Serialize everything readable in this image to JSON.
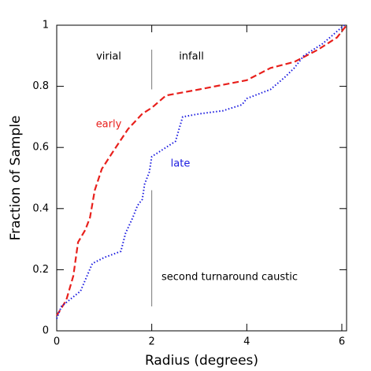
{
  "chart_data": {
    "type": "line",
    "xlabel": "Radius (degrees)",
    "ylabel": "Fraction of Sample",
    "xlim": [
      0,
      6.1
    ],
    "ylim": [
      0,
      1
    ],
    "xticks": [
      0,
      2,
      4,
      6
    ],
    "yticks": [
      0,
      0.2,
      0.4,
      0.6,
      0.8,
      1
    ],
    "series": [
      {
        "name": "early",
        "color": "#e8201c",
        "dash": "dashed",
        "x": [
          0,
          0.2,
          0.35,
          0.45,
          0.6,
          0.7,
          0.8,
          0.95,
          1.2,
          1.5,
          1.8,
          2.0,
          2.3,
          3.0,
          4.0,
          4.5,
          5.0,
          5.5,
          5.9,
          6.1
        ],
        "values": [
          0.05,
          0.1,
          0.18,
          0.29,
          0.33,
          0.37,
          0.46,
          0.53,
          0.59,
          0.66,
          0.71,
          0.73,
          0.77,
          0.79,
          0.82,
          0.86,
          0.88,
          0.92,
          0.96,
          1.0
        ]
      },
      {
        "name": "late",
        "color": "#1c1ce0",
        "dash": "dotted",
        "x": [
          0,
          0.1,
          0.5,
          0.75,
          1.0,
          1.35,
          1.45,
          1.6,
          1.7,
          1.8,
          1.85,
          1.95,
          2.0,
          2.2,
          2.5,
          2.65,
          3.0,
          3.5,
          3.9,
          4.0,
          4.5,
          4.8,
          5.0,
          5.2,
          5.6,
          5.9,
          6.05
        ],
        "values": [
          0.04,
          0.08,
          0.13,
          0.22,
          0.24,
          0.26,
          0.32,
          0.37,
          0.41,
          0.43,
          0.48,
          0.52,
          0.57,
          0.59,
          0.62,
          0.7,
          0.71,
          0.72,
          0.74,
          0.76,
          0.79,
          0.83,
          0.86,
          0.9,
          0.94,
          0.98,
          1.0
        ]
      }
    ],
    "reference_lines": [
      {
        "x": 2,
        "y": [
          0.79,
          0.92
        ]
      },
      {
        "x": 2,
        "y": [
          0.08,
          0.46
        ]
      }
    ],
    "annotations": [
      "virial",
      "infall",
      "second turnaround caustic"
    ]
  }
}
